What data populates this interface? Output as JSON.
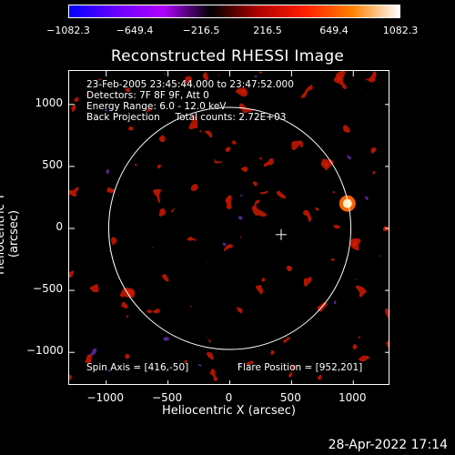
{
  "colorbar": {
    "ticks": [
      "−1082.3",
      "−649.4",
      "−216.5",
      "216.5",
      "649.4",
      "1082.3"
    ],
    "tick_values": [
      -1082.3,
      -649.4,
      -216.5,
      216.5,
      649.4,
      1082.3
    ],
    "range": [
      -1082.3,
      1082.3
    ],
    "stops": [
      "#0000ff",
      "#6a00ff",
      "#b000ff",
      "#000000",
      "#b00000",
      "#ff2000",
      "#ff8000",
      "#ffffff"
    ]
  },
  "title": "Reconstructed RHESSI Image",
  "info_lines": [
    "23-Feb-2005 23:45:44.000 to 23:47:52.000",
    "Detectors: 7F 8F 9F, Att 0",
    "Energy Range: 6.0 - 12.0 keV",
    "Back Projection     Total counts: 2.72E+03"
  ],
  "spin_axis": "Spin Axis = [416,-50]",
  "flare_position": "Flare Position = [952,201]",
  "axes": {
    "x_label": "Heliocentric X (arcsec)",
    "y_label": "Heliocentric Y (arcsec)",
    "x_ticks": [
      "−1000",
      "−500",
      "0",
      "500",
      "1000"
    ],
    "y_ticks": [
      "1000",
      "500",
      "0",
      "−500",
      "−1000"
    ],
    "xlim": [
      -1300,
      1300
    ],
    "ylim": [
      -1270,
      1270
    ]
  },
  "solar_limb_radius_arcsec": 980,
  "spin_axis_marker": [
    416,
    -50
  ],
  "flare_marker": [
    952,
    201
  ],
  "timestamp": "28-Apr-2022 17:14",
  "colors": {
    "background": "#000000",
    "foreground": "#ffffff",
    "hot": "#ff2000",
    "purple": "#5a1f8f"
  }
}
